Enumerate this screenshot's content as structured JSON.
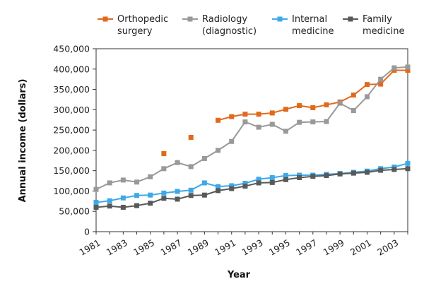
{
  "chart_data": {
    "type": "line",
    "title": "",
    "xlabel": "Year",
    "ylabel": "Annual income (dollars)",
    "xlim": [
      1981,
      2004
    ],
    "ylim": [
      0,
      450000
    ],
    "x_ticks": [
      "1981",
      "1983",
      "1985",
      "1987",
      "1989",
      "1991",
      "1993",
      "1995",
      "1997",
      "1999",
      "2001",
      "2003"
    ],
    "y_ticks": [
      "0",
      "50,000",
      "100,000",
      "150,000",
      "200,000",
      "250,000",
      "300,000",
      "350,000",
      "400,000",
      "450,000"
    ],
    "grid": false,
    "legend": "top",
    "x": [
      1981,
      1982,
      1983,
      1984,
      1985,
      1986,
      1987,
      1988,
      1989,
      1990,
      1991,
      1992,
      1993,
      1994,
      1995,
      1996,
      1997,
      1998,
      1999,
      2000,
      2001,
      2002,
      2003,
      2004
    ],
    "series": [
      {
        "name_lines": [
          "Orthopedic",
          "surgery"
        ],
        "color": "#e06a1b",
        "values": [
          null,
          null,
          null,
          null,
          null,
          192000,
          null,
          232000,
          null,
          274000,
          283000,
          289000,
          289000,
          292000,
          301000,
          310000,
          305000,
          312000,
          319000,
          336000,
          362000,
          363000,
          397000,
          397000
        ]
      },
      {
        "name_lines": [
          "Radiology",
          "(diagnostic)"
        ],
        "color": "#999999",
        "values": [
          104000,
          120000,
          127000,
          122000,
          135000,
          155000,
          170000,
          160000,
          180000,
          200000,
          222000,
          270000,
          257000,
          264000,
          247000,
          269000,
          270000,
          271000,
          316000,
          298000,
          332000,
          375000,
          403000,
          405000
        ]
      },
      {
        "name_lines": [
          "Internal",
          "medicine"
        ],
        "color": "#3da9e8",
        "values": [
          72000,
          76000,
          83000,
          89000,
          90000,
          95000,
          99000,
          102000,
          120000,
          111000,
          113000,
          119000,
          129000,
          133000,
          138000,
          139000,
          139000,
          141000,
          143000,
          146000,
          149000,
          155000,
          159000,
          168000
        ]
      },
      {
        "name_lines": [
          "Family",
          "medicine"
        ],
        "color": "#595959",
        "values": [
          60000,
          63000,
          60000,
          64000,
          70000,
          82000,
          80000,
          89000,
          90000,
          101000,
          106000,
          112000,
          120000,
          121000,
          128000,
          133000,
          136000,
          138000,
          142000,
          144000,
          146000,
          151000,
          153000,
          155000
        ]
      }
    ]
  }
}
